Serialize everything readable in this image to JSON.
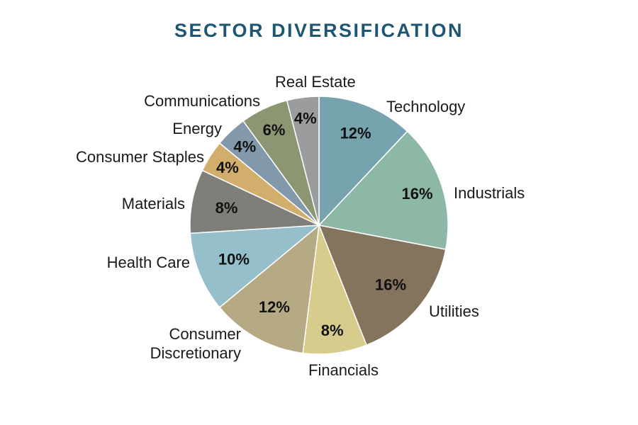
{
  "title": "SECTOR DIVERSIFICATION",
  "chart_data": {
    "type": "pie",
    "title": "SECTOR DIVERSIFICATION",
    "unit": "%",
    "start": "12 o'clock, clockwise",
    "slices": [
      {
        "label": "Technology",
        "value": 12,
        "value_label": "12%",
        "color": "#76a3ad"
      },
      {
        "label": "Industrials",
        "value": 16,
        "value_label": "16%",
        "color": "#8db8a6"
      },
      {
        "label": "Utilities",
        "value": 16,
        "value_label": "16%",
        "color": "#84735d"
      },
      {
        "label": "Financials",
        "value": 8,
        "value_label": "8%",
        "color": "#d6cc8b"
      },
      {
        "label": "Consumer Discretionary",
        "value": 12,
        "value_label": "12%",
        "color": "#b6aa85"
      },
      {
        "label": "Health Care",
        "value": 10,
        "value_label": "10%",
        "color": "#94bfcb"
      },
      {
        "label": "Materials",
        "value": 8,
        "value_label": "8%",
        "color": "#7f7e79"
      },
      {
        "label": "Consumer Staples",
        "value": 4,
        "value_label": "4%",
        "color": "#d2ae6c"
      },
      {
        "label": "Energy",
        "value": 4,
        "value_label": "4%",
        "color": "#8299ab"
      },
      {
        "label": "Communications",
        "value": 6,
        "value_label": "6%",
        "color": "#8c9672"
      },
      {
        "label": "Real Estate",
        "value": 4,
        "value_label": "4%",
        "color": "#9b9c9e"
      }
    ]
  }
}
